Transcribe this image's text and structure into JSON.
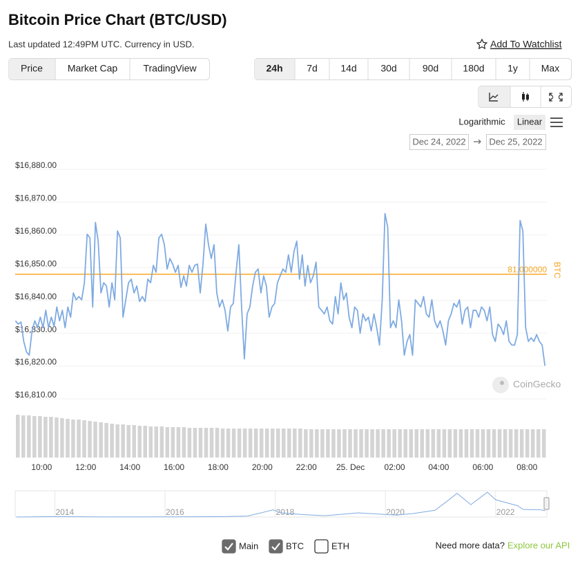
{
  "header": {
    "title": "Bitcoin Price Chart (BTC/USD)",
    "subtitle": "Last updated 12:49PM UTC. Currency in USD.",
    "watchlist": "Add To Watchlist"
  },
  "tabs": {
    "items": [
      "Price",
      "Market Cap",
      "TradingView"
    ],
    "selected": 0
  },
  "ranges": {
    "items": [
      "24h",
      "7d",
      "14d",
      "30d",
      "90d",
      "180d",
      "1y",
      "Max"
    ],
    "selected": 0
  },
  "scale_options": {
    "items": [
      "Logarithmic",
      "Linear"
    ],
    "selected": 1
  },
  "date_range": {
    "from": "Dec 24, 2022",
    "to": "Dec 25, 2022"
  },
  "chart_data": {
    "type": "line",
    "series": [
      {
        "color": "#7eaae2",
        "values": [
          16833.8,
          16832.8,
          16833.4,
          16827.5,
          16824.3,
          16823.3,
          16830.7,
          16833.8,
          16831.7,
          16834.9,
          16831.7,
          16837.0,
          16831.7,
          16834.9,
          16832.1,
          16838.0,
          16833.8,
          16837.0,
          16831.7,
          16838.0,
          16834.9,
          16842.3,
          16840.2,
          16841.2,
          16840.2,
          16845.4,
          16860.2,
          16859.1,
          16838.0,
          16863.8,
          16858.1,
          16842.3,
          16845.4,
          16844.4,
          16838.0,
          16845.4,
          16840.2,
          16861.2,
          16859.1,
          16834.9,
          16840.2,
          16845.4,
          16846.5,
          16842.3,
          16844.4,
          16839.7,
          16841.2,
          16839.7,
          16846.5,
          16845.4,
          16850.7,
          16848.6,
          16859.1,
          16860.2,
          16857.0,
          16849.6,
          16852.8,
          16851.1,
          16848.6,
          16850.7,
          16844.0,
          16847.5,
          16844.4,
          16850.7,
          16848.6,
          16850.7,
          16851.1,
          16842.3,
          16851.1,
          16863.3,
          16857.0,
          16852.8,
          16857.0,
          16842.3,
          16838.0,
          16840.2,
          16837.0,
          16830.7,
          16838.0,
          16839.1,
          16848.6,
          16857.0,
          16838.0,
          16822.2,
          16835.9,
          16838.0,
          16844.4,
          16848.6,
          16849.6,
          16842.3,
          16847.5,
          16844.4,
          16834.9,
          16838.0,
          16839.1,
          16845.4,
          16847.5,
          16849.6,
          16848.6,
          16853.9,
          16848.6,
          16854.9,
          16858.1,
          16846.5,
          16853.9,
          16844.4,
          16850.7,
          16845.4,
          16847.5,
          16851.7,
          16838.0,
          16837.0,
          16835.9,
          16838.0,
          16833.8,
          16832.8,
          16841.2,
          16835.9,
          16845.4,
          16840.2,
          16842.3,
          16834.9,
          16831.7,
          16838.0,
          16837.0,
          16830.0,
          16835.9,
          16833.8,
          16834.9,
          16830.7,
          16835.9,
          16831.7,
          16826.4,
          16840.2,
          16866.5,
          16862.3,
          16831.7,
          16833.8,
          16831.7,
          16840.2,
          16833.8,
          16823.3,
          16827.5,
          16829.6,
          16823.3,
          16840.2,
          16839.1,
          16838.0,
          16841.2,
          16835.9,
          16834.9,
          16840.2,
          16833.8,
          16831.7,
          16833.8,
          16830.7,
          16826.4,
          16833.8,
          16835.9,
          16839.1,
          16838.0,
          16840.2,
          16832.8,
          16837.0,
          16838.0,
          16831.7,
          16837.0,
          16837.0,
          16834.9,
          16838.0,
          16837.0,
          16833.8,
          16838.0,
          16829.6,
          16827.5,
          16832.8,
          16831.7,
          16829.6,
          16833.8,
          16827.5,
          16826.4,
          16826.4,
          16829.6,
          16864.4,
          16861.2,
          16831.7,
          16827.5,
          16828.6,
          16827.5,
          16829.6,
          16827.5,
          16826.4,
          16820.1
        ]
      }
    ],
    "x": [
      8.8125,
      8.9375,
      9.0625,
      9.1875,
      9.3125,
      9.4375,
      9.5625,
      9.6875,
      9.8125,
      9.9375,
      10.0625,
      10.1875,
      10.3125,
      10.4375,
      10.5625,
      10.6875,
      10.8125,
      10.9375,
      11.0625,
      11.1875,
      11.3125,
      11.4375,
      11.5625,
      11.6875,
      11.8125,
      11.9375,
      12.0625,
      12.1875,
      12.3125,
      12.4375,
      12.5625,
      12.6875,
      12.8125,
      12.9375,
      13.0625,
      13.1875,
      13.3125,
      13.4375,
      13.5625,
      13.6875,
      13.8125,
      13.9375,
      14.0625,
      14.1875,
      14.3125,
      14.4375,
      14.5625,
      14.6875,
      14.8125,
      14.9375,
      15.0625,
      15.1875,
      15.3125,
      15.4375,
      15.5625,
      15.6875,
      15.8125,
      15.9375,
      16.0625,
      16.1875,
      16.3125,
      16.4375,
      16.5625,
      16.6875,
      16.8125,
      16.9375,
      17.0625,
      17.1875,
      17.3125,
      17.4375,
      17.5625,
      17.6875,
      17.8125,
      17.9375,
      18.0625,
      18.1875,
      18.3125,
      18.4375,
      18.5625,
      18.6875,
      18.8125,
      18.9375,
      19.0625,
      19.1875,
      19.3125,
      19.4375,
      19.5625,
      19.6875,
      19.8125,
      19.9375,
      20.0625,
      20.1875,
      20.3125,
      20.4375,
      20.5625,
      20.6875,
      20.8125,
      20.9375,
      21.0625,
      21.1875,
      21.3125,
      21.4375,
      21.5625,
      21.6875,
      21.8125,
      21.9375,
      22.0625,
      22.1875,
      22.3125,
      22.4375,
      22.5625,
      22.6875,
      22.8125,
      22.9375,
      23.0625,
      23.1875,
      23.3125,
      23.4375,
      23.5625,
      23.6875,
      23.8125,
      23.9375,
      24.0625,
      24.1875,
      24.3125,
      24.4375,
      24.5625,
      24.6875,
      24.8125,
      24.9375,
      25.0625,
      25.1875,
      25.3125,
      25.4375,
      25.5625,
      25.6875,
      25.8125,
      25.9375,
      26.0625,
      26.1875,
      26.3125,
      26.4375,
      26.5625,
      26.6875,
      26.8125,
      26.9375,
      27.0625,
      27.1875,
      27.3125,
      27.4375,
      27.5625,
      27.6875,
      27.8125,
      27.9375,
      28.0625,
      28.1875,
      28.3125,
      28.4375,
      28.5625,
      28.6875,
      28.8125,
      28.9375,
      29.0625,
      29.1875,
      29.3125,
      29.4375,
      29.5625,
      29.6875,
      29.8125,
      29.9375,
      30.0625,
      30.1875,
      30.3125,
      30.4375,
      30.5625,
      30.6875,
      30.8125,
      30.9375,
      31.0625,
      31.1875,
      31.3125,
      31.4375,
      31.5625,
      31.6875,
      31.8125,
      31.9375,
      32.0625,
      32.1875,
      32.3125,
      32.4375,
      32.5625,
      32.6875,
      32.8125
    ],
    "xlim": [
      8.8,
      32.9
    ],
    "xticks": [
      {
        "value": 10,
        "label": "10:00"
      },
      {
        "value": 12,
        "label": "12:00"
      },
      {
        "value": 14,
        "label": "14:00"
      },
      {
        "value": 16,
        "label": "16:00"
      },
      {
        "value": 18,
        "label": "18:00"
      },
      {
        "value": 20,
        "label": "20:00"
      },
      {
        "value": 22,
        "label": "22:00"
      },
      {
        "value": 24,
        "label": "25. Dec"
      },
      {
        "value": 26,
        "label": "02:00"
      },
      {
        "value": 28,
        "label": "04:00"
      },
      {
        "value": 30,
        "label": "06:00"
      },
      {
        "value": 32,
        "label": "08:00"
      }
    ],
    "ylim": [
      16810,
      16880
    ],
    "yticks": [
      {
        "value": 16880,
        "label": "$16,880.00"
      },
      {
        "value": 16870,
        "label": "$16,870.00"
      },
      {
        "value": 16860,
        "label": "$16,860.00"
      },
      {
        "value": 16850,
        "label": "$16,850.00"
      },
      {
        "value": 16840,
        "label": "$16,840.00"
      },
      {
        "value": 16830,
        "label": "$16,830.00"
      },
      {
        "value": 16820,
        "label": "$16,820.00"
      },
      {
        "value": 16810,
        "label": "$16,810.00"
      }
    ],
    "grid": true,
    "reference_line": {
      "value": 16848,
      "label": "81.000000",
      "axis_label": "BTC",
      "color": "#f5a623"
    },
    "volume": {
      "color": "#d4d4d4",
      "ylim": [
        0,
        62
      ],
      "values": [
        62,
        61,
        61,
        60,
        60,
        59,
        59,
        58,
        57,
        56,
        55,
        55,
        54,
        53,
        52,
        51,
        50,
        49,
        48,
        48,
        47,
        47,
        46,
        46,
        45,
        45,
        45,
        44,
        44,
        44,
        44,
        43,
        43,
        43,
        43,
        43,
        43,
        42,
        42,
        42,
        42,
        42,
        42,
        42,
        42,
        42,
        42,
        42,
        42,
        42,
        42,
        42,
        41,
        41,
        41,
        41,
        41,
        41,
        41,
        41,
        41,
        41,
        41,
        41,
        41,
        41,
        41,
        41,
        41,
        41,
        41,
        41,
        41,
        41,
        41,
        41,
        41,
        41,
        41,
        41,
        41,
        41,
        41,
        41,
        41,
        41,
        41,
        41,
        41,
        41,
        41,
        41,
        41,
        41,
        41,
        41
      ]
    },
    "watermark": "CoinGecko"
  },
  "navigator": {
    "type": "line",
    "color": "#7eaae2",
    "x": [
      2013.3,
      2013.9,
      2014.5,
      2015,
      2016,
      2016.5,
      2017,
      2017.5,
      2017.96,
      2018.1,
      2018.5,
      2018.9,
      2019.5,
      2020.2,
      2020.5,
      2020.9,
      2021.1,
      2021.3,
      2021.55,
      2021.85,
      2022.0,
      2022.4,
      2022.5,
      2022.8,
      2022.9
    ],
    "values": [
      100,
      1000,
      600,
      300,
      430,
      650,
      1000,
      2500,
      19000,
      11000,
      6500,
      3500,
      11000,
      5000,
      9200,
      18000,
      40000,
      63000,
      33000,
      66000,
      46000,
      30000,
      20000,
      19500,
      16800
    ],
    "xlim": [
      2013.28,
      2022.93
    ],
    "ylim": [
      0,
      70000
    ],
    "xticks": [
      2014,
      2016,
      2018,
      2020,
      2022
    ]
  },
  "legend_toggles": [
    {
      "label": "Main",
      "checked": true
    },
    {
      "label": "BTC",
      "checked": true
    },
    {
      "label": "ETH",
      "checked": false
    }
  ],
  "footer": {
    "prompt": "Need more data?",
    "link": "Explore our API"
  }
}
